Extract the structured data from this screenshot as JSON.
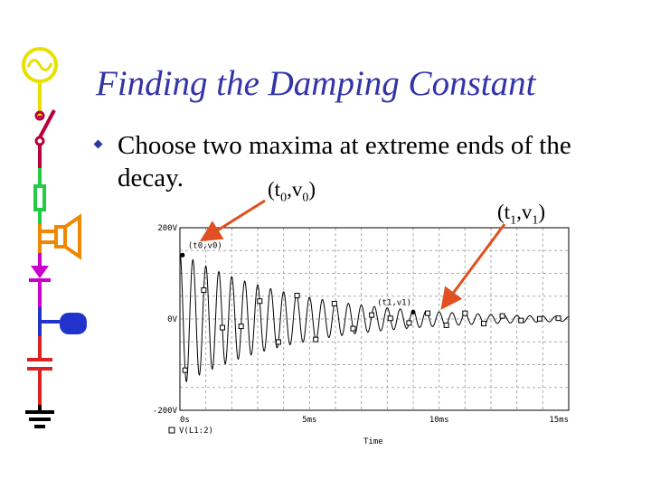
{
  "slide": {
    "title": "Finding the Damping Constant",
    "bullet": "Choose two maxima at extreme ends of the decay.",
    "points": [
      {
        "base": "(t",
        "sub0": "0",
        "mid": ",v",
        "sub1": "0",
        "end": ")"
      },
      {
        "base": "(t",
        "sub0": "1",
        "mid": ",v",
        "sub1": "1",
        "end": ")"
      }
    ]
  },
  "icons": [
    "ac-source-icon",
    "switch-icon",
    "resistor-icon",
    "speaker-icon",
    "diode-icon",
    "battery-icon",
    "capacitor-icon",
    "ground-icon"
  ],
  "colors": {
    "title": "#3333aa",
    "arrow": "#e05020",
    "trace": "#000000",
    "grid": "#aaaaaa"
  },
  "chart_data": {
    "type": "line",
    "title": "",
    "xlabel": "Time",
    "ylabel": "",
    "xlim": [
      0,
      15
    ],
    "ylim": [
      -200,
      200
    ],
    "x_unit": "ms",
    "y_unit": "V",
    "x_ticks": [
      "0s",
      "5ms",
      "10ms",
      "15ms"
    ],
    "y_ticks": [
      "200V",
      "0V",
      "-200V"
    ],
    "grid": true,
    "legend": "bottom-left",
    "series": [
      {
        "name": "V(L1:2)",
        "model": "damped_sine",
        "amplitude": 145,
        "decay_ms": 4.5,
        "period_ms": 0.5
      }
    ],
    "annotations": [
      {
        "label": "(t0,v0)",
        "x": 0.1,
        "y": 140
      },
      {
        "label": "(t1,v1)",
        "x": 9.0,
        "y": 15
      }
    ]
  }
}
